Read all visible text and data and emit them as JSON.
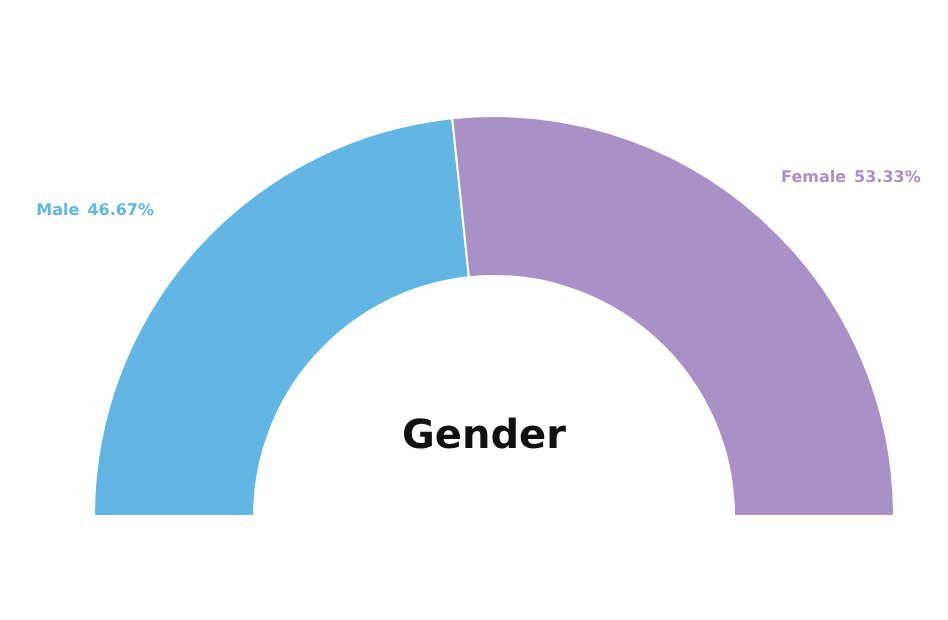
{
  "chart_data": {
    "type": "donut",
    "title": "Gender",
    "categories": [
      "Male",
      "Female"
    ],
    "values": [
      46.67,
      53.33
    ],
    "colors": [
      "#62b6e3",
      "#a991c8"
    ],
    "value_labels": [
      "46.67%",
      "53.33%"
    ],
    "legend": false
  }
}
